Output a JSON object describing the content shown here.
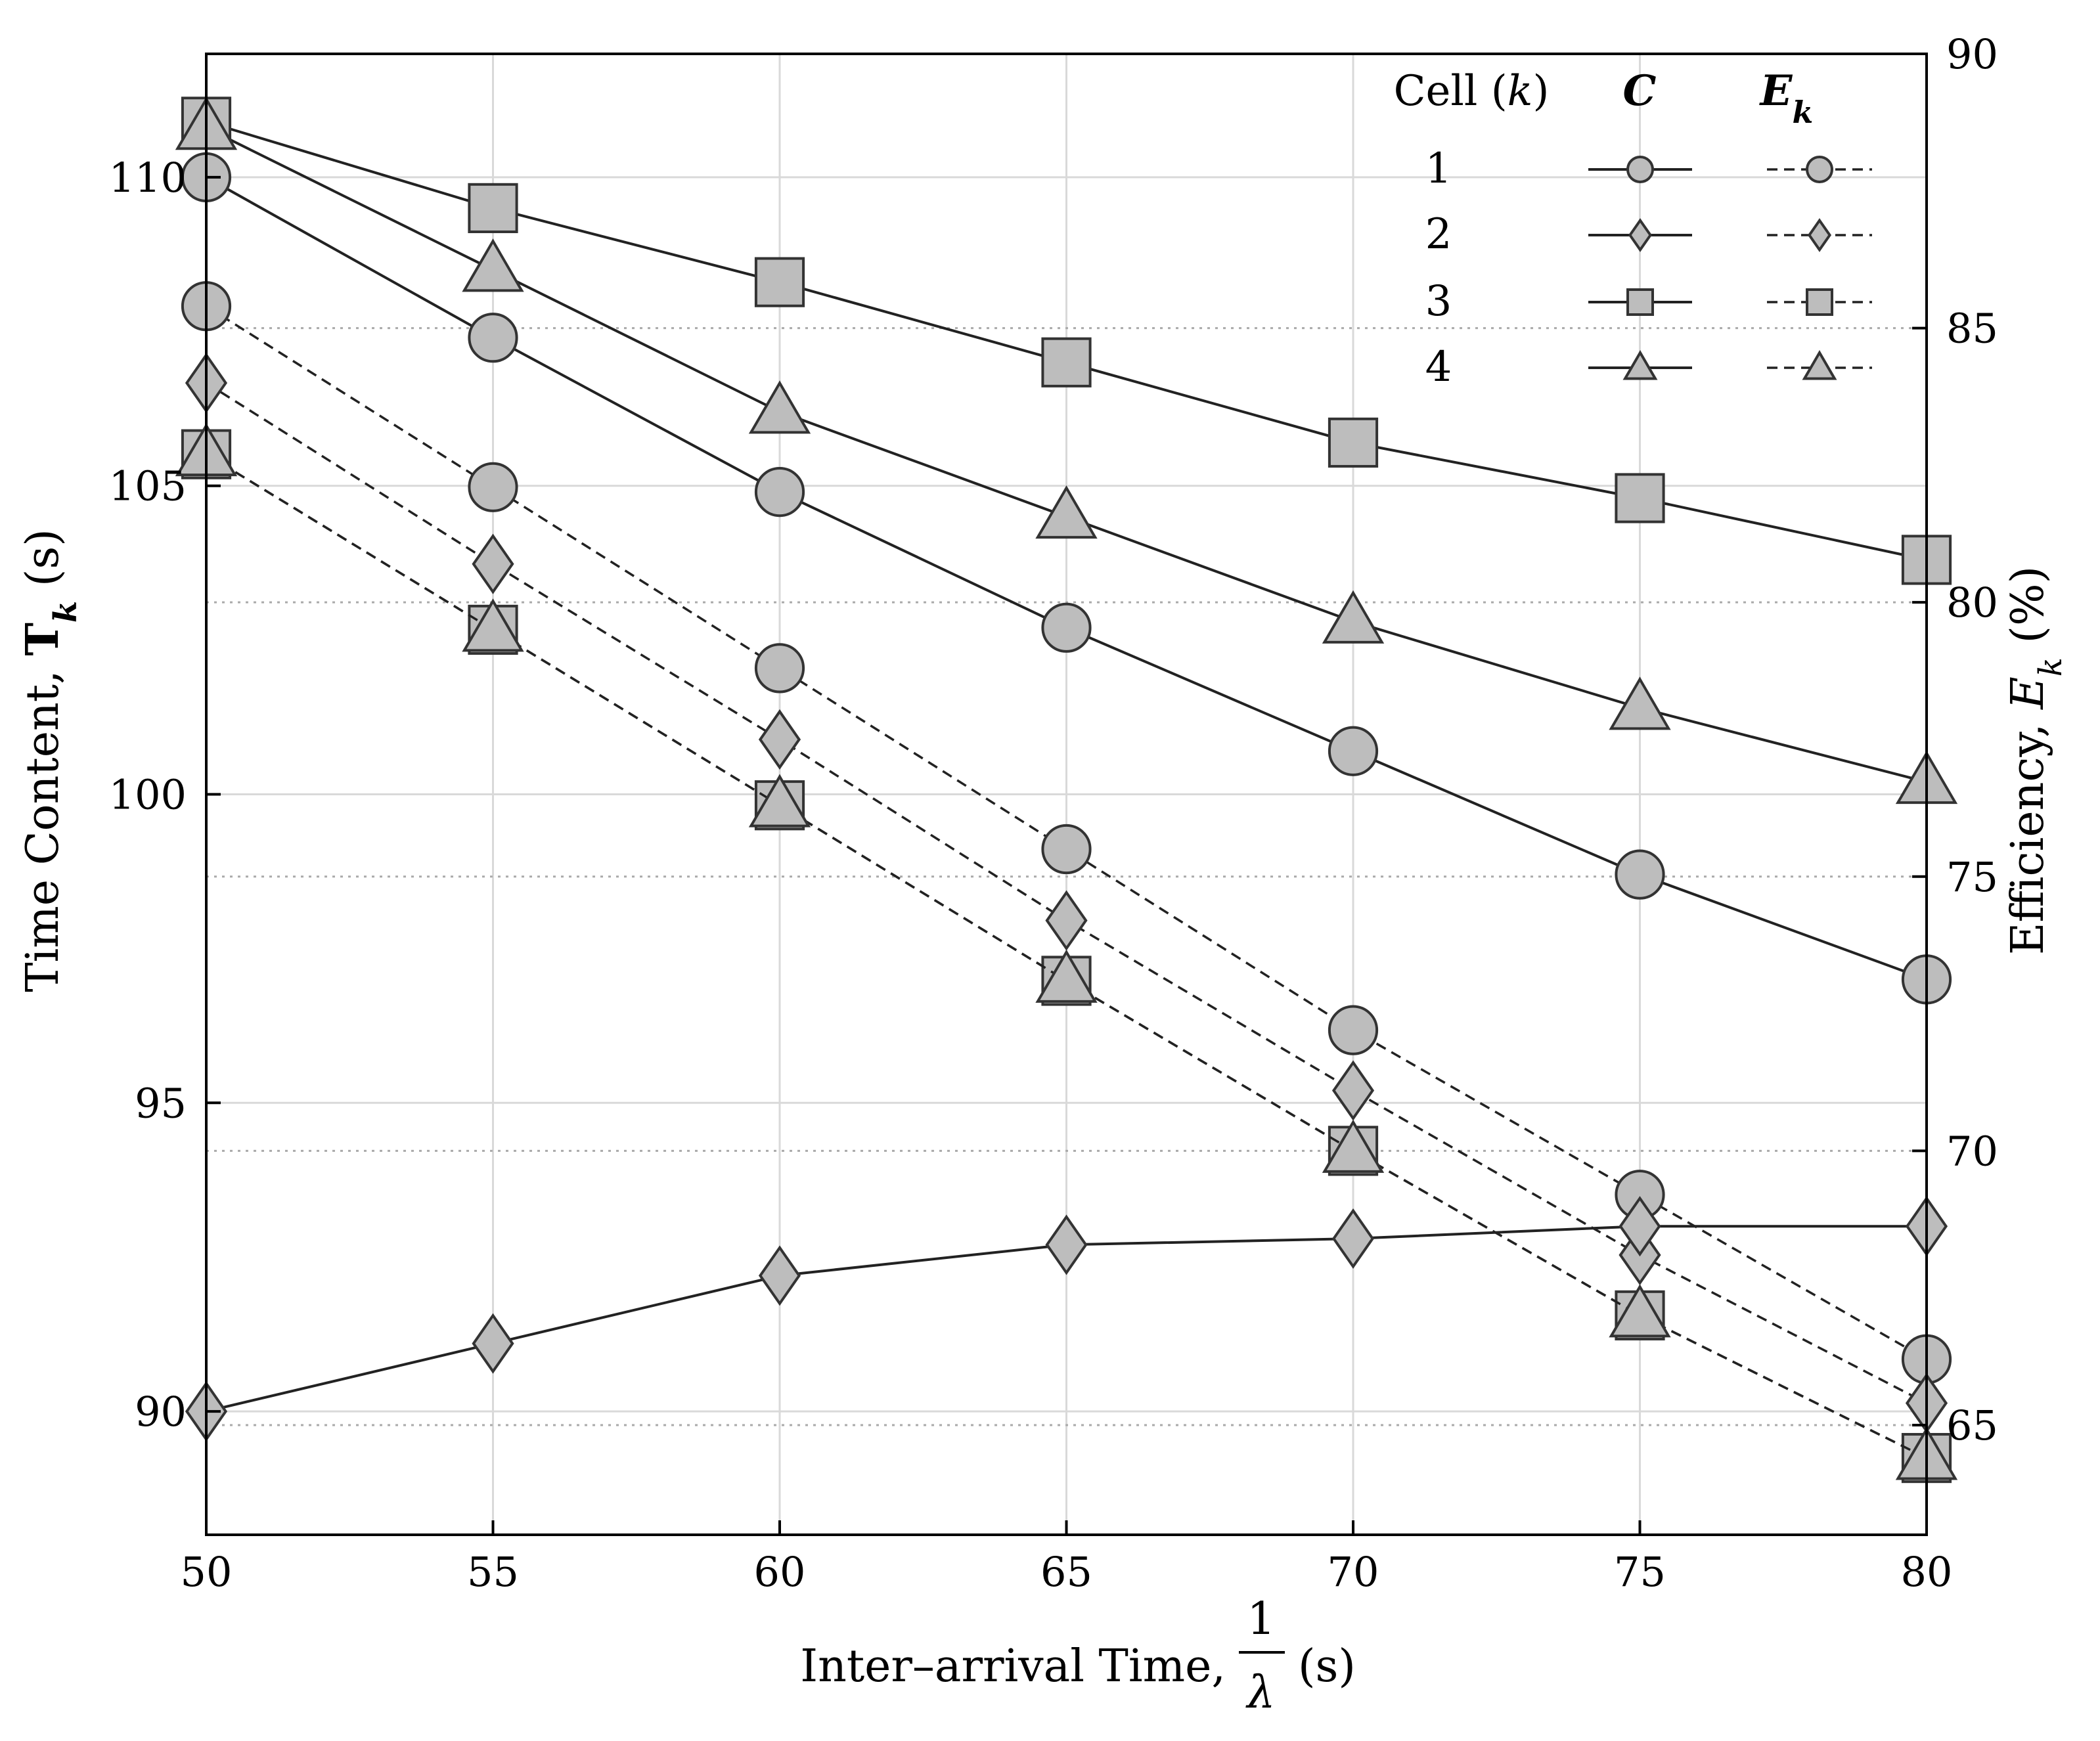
{
  "chart_data": {
    "type": "line",
    "x": [
      50,
      55,
      60,
      65,
      70,
      75,
      80
    ],
    "xlim": [
      50,
      80
    ],
    "xticks": [
      50,
      55,
      60,
      65,
      70,
      75,
      80
    ],
    "ylim_left": [
      88,
      112
    ],
    "yticks_left": [
      90,
      95,
      100,
      105,
      110
    ],
    "ylim_right": [
      63,
      90
    ],
    "yticks_right": [
      65,
      70,
      75,
      80,
      85,
      90
    ],
    "xlabel": "Inter–arrival Time, 1/λ (s)",
    "xlabel_prefix": "Inter–arrival Time,",
    "xlabel_frac_num": "1",
    "xlabel_frac_den": "λ",
    "xlabel_suffix": "(s)",
    "ylabel_left": "Time Content, T_k (s)",
    "ylabel_left_text": "Time Content,",
    "ylabel_left_sym": "T",
    "ylabel_left_sub": "k",
    "ylabel_left_unit": "(s)",
    "ylabel_right": "Efficiency, E_k (%)",
    "ylabel_right_text": "Efficiency,",
    "ylabel_right_sym": "E",
    "ylabel_right_sub": "k",
    "ylabel_right_unit": "(%)",
    "grid": true,
    "legend": {
      "placement": "top-right",
      "col_cell": "Cell (k)",
      "col_cell_text": "Cell (",
      "col_cell_k": "k",
      "col_cell_close": ")",
      "col_c": "C",
      "col_e": "E",
      "col_e_sub": "k",
      "rows": [
        "1",
        "2",
        "3",
        "4"
      ]
    },
    "series": [
      {
        "cell": "1",
        "measure": "C",
        "axis": "left",
        "marker": "circle",
        "dash": "solid",
        "values": [
          110.0,
          107.4,
          104.9,
          102.7,
          100.7,
          98.7,
          97.0
        ]
      },
      {
        "cell": "2",
        "measure": "C",
        "axis": "left",
        "marker": "diamond",
        "dash": "solid",
        "values": [
          90.0,
          91.1,
          92.2,
          92.7,
          92.8,
          93.0,
          93.0
        ]
      },
      {
        "cell": "3",
        "measure": "C",
        "axis": "left",
        "marker": "square",
        "dash": "solid",
        "values": [
          110.9,
          109.5,
          108.3,
          107.0,
          105.7,
          104.8,
          103.8
        ]
      },
      {
        "cell": "4",
        "measure": "C",
        "axis": "left",
        "marker": "triangle",
        "dash": "solid",
        "values": [
          110.8,
          108.5,
          106.2,
          104.5,
          102.8,
          101.4,
          100.2
        ]
      },
      {
        "cell": "1",
        "measure": "E_k",
        "axis": "right",
        "marker": "circle",
        "dash": "dashed",
        "values": [
          85.4,
          82.1,
          78.8,
          75.5,
          72.2,
          69.2,
          66.2
        ]
      },
      {
        "cell": "2",
        "measure": "E_k",
        "axis": "right",
        "marker": "diamond",
        "dash": "dashed",
        "values": [
          84.0,
          80.7,
          77.5,
          74.2,
          71.1,
          68.1,
          65.4
        ]
      },
      {
        "cell": "3",
        "measure": "E_k",
        "axis": "right",
        "marker": "square",
        "dash": "dashed",
        "values": [
          82.7,
          79.5,
          76.3,
          73.1,
          70.0,
          67.0,
          64.4
        ]
      },
      {
        "cell": "4",
        "measure": "E_k",
        "axis": "right",
        "marker": "triangle",
        "dash": "dashed",
        "values": [
          82.7,
          79.5,
          76.3,
          73.1,
          70.0,
          67.0,
          64.4
        ]
      }
    ],
    "colors": {
      "marker_fill": "#bdbdbd",
      "marker_stroke": "#333333",
      "line": "#222222",
      "grid": "#d9d9d9"
    }
  }
}
